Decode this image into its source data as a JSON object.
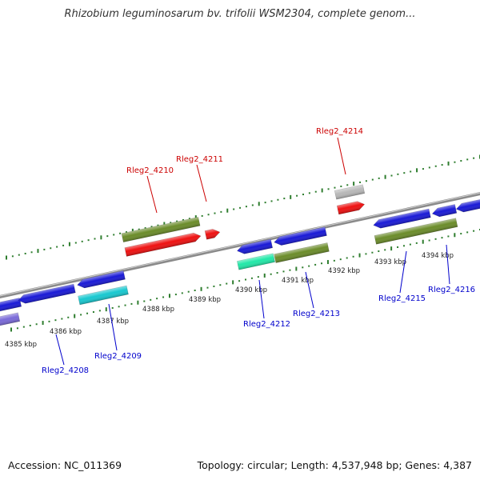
{
  "title": "Rhizobium leguminosarum bv. trifolii WSM2304, complete genom...",
  "footer": {
    "accession": "Accession: NC_011369",
    "summary": "Topology: circular; Length: 4,537,948 bp; Genes: 4,387"
  },
  "colors": {
    "backbone": "#8c8c8c",
    "forward_label": "#cc0000",
    "reverse_label": "#0000cc",
    "tick": "#2e7d2e",
    "blue": "#1a1ad6",
    "olive": "#6b8c2a",
    "red": "#ee1111",
    "cyan": "#18c8d0",
    "mint": "#22e8a8",
    "grey": "#b8b8b8",
    "violet": "#7a6ad8"
  },
  "scale": {
    "labels": [
      "4385 kbp",
      "4386 kbp",
      "4387 kbp",
      "4388 kbp",
      "4389 kbp",
      "4390 kbp",
      "4391 kbp",
      "4392 kbp",
      "4393 kbp",
      "4394 kbp"
    ]
  },
  "genes": [
    {
      "id": "Rleg2_4208",
      "label": "Rleg2_4208",
      "strand": "reverse",
      "color": "blue"
    },
    {
      "id": "Rleg2_4209",
      "label": "Rleg2_4209",
      "strand": "reverse",
      "color": "cyan"
    },
    {
      "id": "Rleg2_4210",
      "label": "Rleg2_4210",
      "strand": "forward",
      "color": "red"
    },
    {
      "id": "Rleg2_4211",
      "label": "Rleg2_4211",
      "strand": "forward",
      "color": "red"
    },
    {
      "id": "Rleg2_4212",
      "label": "Rleg2_4212",
      "strand": "reverse",
      "color": "mint"
    },
    {
      "id": "Rleg2_4213",
      "label": "Rleg2_4213",
      "strand": "reverse",
      "color": "olive"
    },
    {
      "id": "Rleg2_4214",
      "label": "Rleg2_4214",
      "strand": "forward",
      "color": "red"
    },
    {
      "id": "Rleg2_4215",
      "label": "Rleg2_4215",
      "strand": "reverse",
      "color": "olive"
    },
    {
      "id": "Rleg2_4216",
      "label": "Rleg2_4216",
      "strand": "reverse",
      "color": "blue"
    }
  ]
}
